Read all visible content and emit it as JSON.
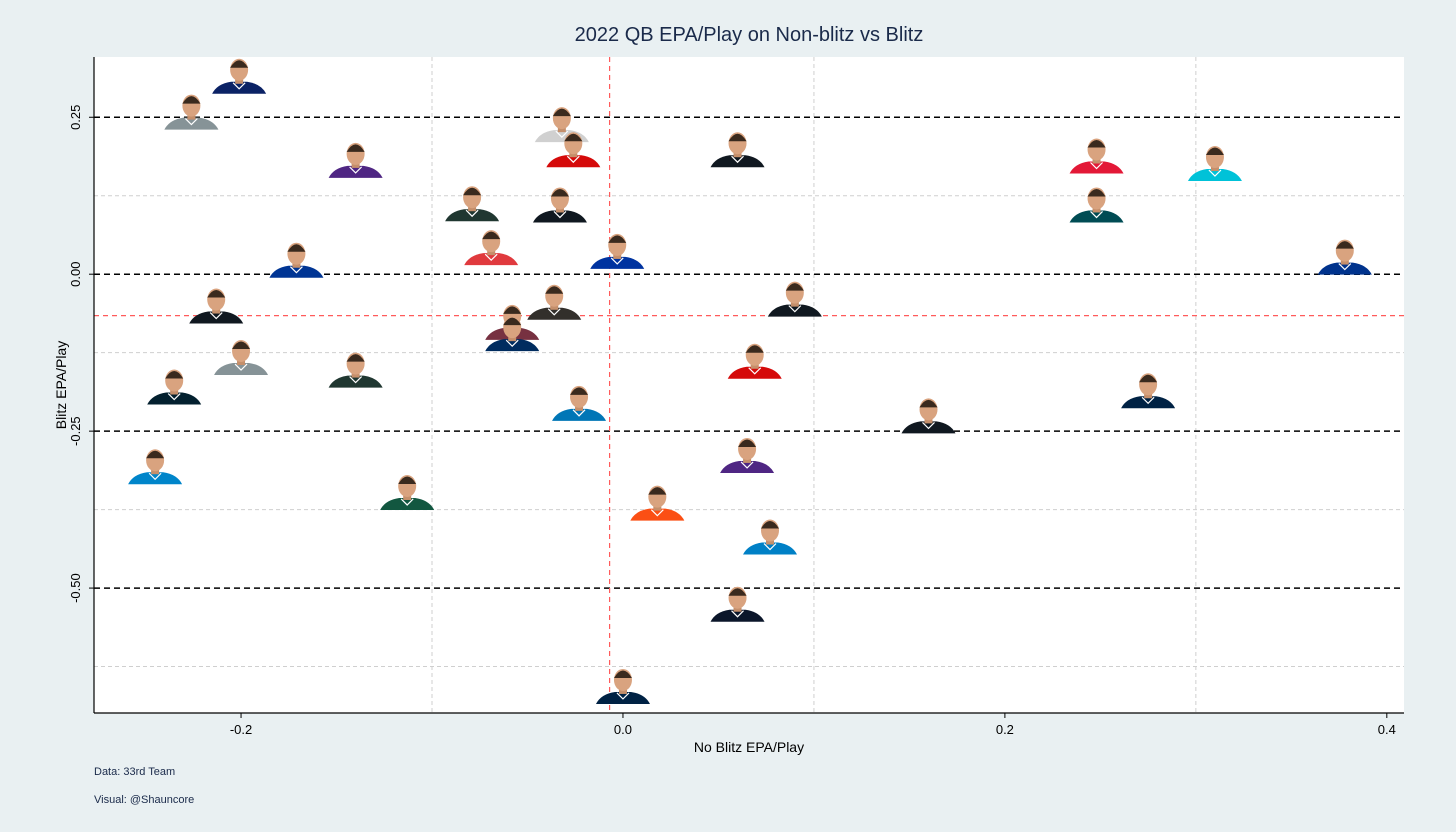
{
  "chart_data": {
    "type": "scatter",
    "title": "2022 QB EPA/Play on Non-blitz vs Blitz",
    "xlabel": "No Blitz EPA/Play",
    "ylabel": "Blitz EPA/Play",
    "xlim": [
      -0.277,
      0.409
    ],
    "ylim": [
      -0.699,
      0.346
    ],
    "x_ticks": [
      {
        "value": -0.2,
        "label": "-0.2"
      },
      {
        "value": 0.0,
        "label": "0.0"
      },
      {
        "value": 0.2,
        "label": "0.2"
      },
      {
        "value": 0.4,
        "label": "0.4"
      }
    ],
    "y_ticks": [
      {
        "value": 0.25,
        "label": "0.25"
      },
      {
        "value": 0.0,
        "label": "0.00"
      },
      {
        "value": -0.25,
        "label": "-0.25"
      },
      {
        "value": -0.5,
        "label": "-0.50"
      }
    ],
    "grid": true,
    "x_minor_grid": [
      -0.1,
      0.1,
      0.3
    ],
    "y_minor_grid": [
      0.125,
      -0.125,
      -0.375,
      -0.625
    ],
    "mean_lines": {
      "x": -0.007,
      "y": -0.066,
      "color": "#ff5b5b"
    },
    "point_marker": "player headshot",
    "points": [
      {
        "x": -0.201,
        "y": 0.289,
        "color": "#0b2265"
      },
      {
        "x": -0.226,
        "y": 0.232,
        "color": "#869397"
      },
      {
        "x": -0.14,
        "y": 0.155,
        "color": "#4f2683"
      },
      {
        "x": -0.032,
        "y": 0.212,
        "color": "#d0d0d0"
      },
      {
        "x": -0.026,
        "y": 0.172,
        "color": "#d50a0a"
      },
      {
        "x": 0.06,
        "y": 0.172,
        "color": "#101820"
      },
      {
        "x": 0.248,
        "y": 0.162,
        "color": "#e31837"
      },
      {
        "x": 0.31,
        "y": 0.15,
        "color": "#00c2d8"
      },
      {
        "x": -0.079,
        "y": 0.086,
        "color": "#203731"
      },
      {
        "x": -0.033,
        "y": 0.084,
        "color": "#101820"
      },
      {
        "x": 0.248,
        "y": 0.084,
        "color": "#004c54"
      },
      {
        "x": -0.069,
        "y": 0.016,
        "color": "#e03a3e"
      },
      {
        "x": -0.003,
        "y": 0.01,
        "color": "#0033a0"
      },
      {
        "x": 0.378,
        "y": 0.001,
        "color": "#00338d"
      },
      {
        "x": -0.171,
        "y": -0.004,
        "color": "#003594"
      },
      {
        "x": -0.213,
        "y": -0.077,
        "color": "#101820"
      },
      {
        "x": -0.036,
        "y": -0.071,
        "color": "#322f2b"
      },
      {
        "x": -0.058,
        "y": -0.103,
        "color": "#773141"
      },
      {
        "x": -0.058,
        "y": -0.121,
        "color": "#002c5f"
      },
      {
        "x": 0.09,
        "y": -0.066,
        "color": "#101820"
      },
      {
        "x": -0.2,
        "y": -0.159,
        "color": "#869397"
      },
      {
        "x": -0.14,
        "y": -0.179,
        "color": "#203731"
      },
      {
        "x": 0.069,
        "y": -0.165,
        "color": "#d50a0a"
      },
      {
        "x": -0.235,
        "y": -0.206,
        "color": "#03202f"
      },
      {
        "x": -0.023,
        "y": -0.232,
        "color": "#0076b6"
      },
      {
        "x": 0.275,
        "y": -0.212,
        "color": "#002244"
      },
      {
        "x": 0.16,
        "y": -0.252,
        "color": "#101820"
      },
      {
        "x": -0.245,
        "y": -0.333,
        "color": "#0085ca"
      },
      {
        "x": -0.113,
        "y": -0.374,
        "color": "#125740"
      },
      {
        "x": 0.065,
        "y": -0.315,
        "color": "#4f2683"
      },
      {
        "x": 0.018,
        "y": -0.391,
        "color": "#fb4f14"
      },
      {
        "x": 0.077,
        "y": -0.445,
        "color": "#0080c6"
      },
      {
        "x": 0.06,
        "y": -0.552,
        "color": "#0b162a"
      },
      {
        "x": 0.0,
        "y": -0.683,
        "color": "#002244"
      }
    ]
  },
  "caption": {
    "data": "Data: 33rd Team",
    "visual": "Visual: @Shauncore"
  }
}
